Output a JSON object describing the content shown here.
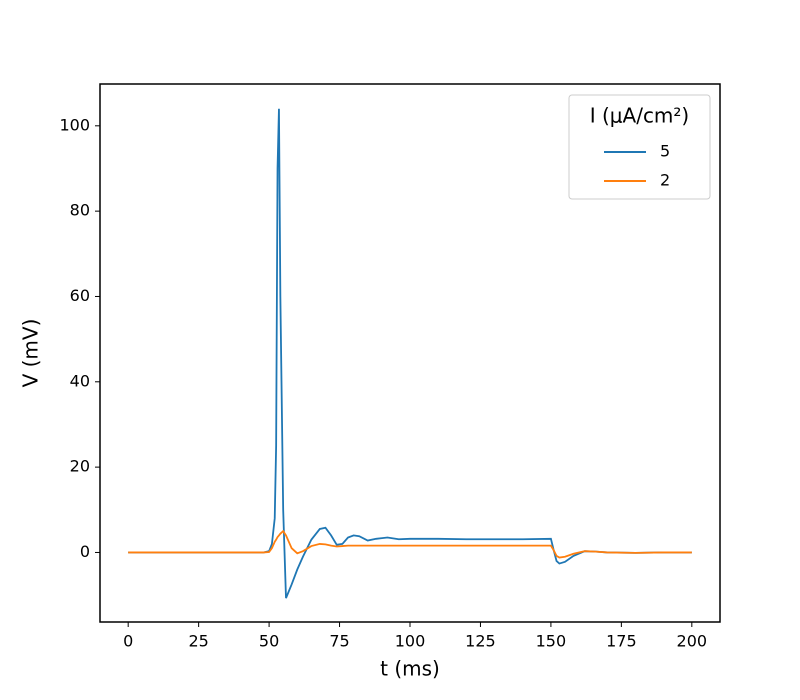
{
  "chart_data": {
    "type": "line",
    "x_label": "t (ms)",
    "y_label": "V (mV)",
    "legend_title": "I (μA/cm²)",
    "legend": "upper right",
    "x": [
      0,
      25,
      48,
      50,
      51,
      52,
      52.5,
      53,
      53.5,
      54,
      55,
      56,
      58,
      60,
      62,
      65,
      68,
      70,
      72,
      74,
      76,
      78,
      80,
      82,
      85,
      88,
      92,
      96,
      100,
      110,
      120,
      130,
      140,
      150,
      151,
      152,
      153,
      155,
      158,
      162,
      166,
      170,
      180,
      190,
      200
    ],
    "series": [
      {
        "name": "5",
        "color": "#1f77b4",
        "values": [
          0,
          0,
          0,
          0.3,
          2,
          8,
          25,
          90,
          104,
          60,
          10,
          -10.7,
          -7.5,
          -4,
          -1,
          3,
          5.5,
          5.8,
          4,
          1.8,
          2,
          3.5,
          4,
          3.8,
          2.8,
          3.2,
          3.5,
          3.1,
          3.2,
          3.2,
          3.1,
          3.1,
          3.1,
          3.2,
          0.5,
          -2,
          -2.6,
          -2.2,
          -0.8,
          0.3,
          0.2,
          0,
          -0.1,
          0,
          0
        ]
      },
      {
        "name": "2",
        "color": "#ff7f0e",
        "values": [
          0,
          0,
          0,
          0.1,
          1,
          2.5,
          3,
          3.6,
          4,
          4.4,
          5,
          4,
          1,
          -0.2,
          0.3,
          1.5,
          2,
          1.9,
          1.6,
          1.4,
          1.5,
          1.6,
          1.6,
          1.6,
          1.6,
          1.6,
          1.6,
          1.6,
          1.6,
          1.6,
          1.6,
          1.6,
          1.6,
          1.6,
          0.5,
          -0.8,
          -1.2,
          -1,
          -0.3,
          0.3,
          0.2,
          0,
          -0.1,
          0,
          0
        ]
      }
    ],
    "xlim": [
      -10,
      210
    ],
    "xticks": [
      0,
      25,
      50,
      75,
      100,
      125,
      150,
      175,
      200
    ],
    "ylim": [
      -16.3,
      109.8
    ],
    "yticks": [
      0,
      20,
      40,
      60,
      80,
      100
    ],
    "grid": false
  }
}
